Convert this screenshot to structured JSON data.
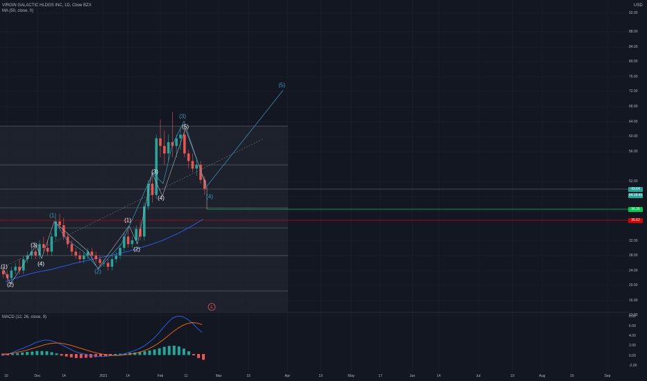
{
  "legend": {
    "title": "VIRGIN GALACTIC HLDGS INC, 1D, Cboe BZX",
    "ma": "MA (50, close, 0)",
    "macd": "MACD (12, 26, close, 9)"
  },
  "currency": "USD",
  "price_axis": [
    "92.00",
    "88.00",
    "84.00",
    "80.00",
    "76.00",
    "72.00",
    "68.00",
    "64.00",
    "60.00",
    "56.00",
    "52.00",
    "48.00",
    "40.00",
    "32.00",
    "28.00",
    "24.00",
    "20.00",
    "16.00",
    "12.00"
  ],
  "macd_axis": [
    "8.00",
    "6.00",
    "4.00",
    "2.00",
    "0.00",
    "-2.00"
  ],
  "date_axis": [
    "16",
    "Dec",
    "14",
    "2021",
    "14",
    "Feb",
    "11",
    "Mar",
    "15",
    "Apr",
    "19",
    "May",
    "17",
    "Jun",
    "14",
    "Jul",
    "19",
    "Aug",
    "16",
    "Sep"
  ],
  "price_tags": {
    "last_price": "43.64",
    "countdown": "04:18:40",
    "green_level": "36.35",
    "red_level": "35.62"
  },
  "wave_labels": [
    {
      "text": "(1)",
      "color": "white"
    },
    {
      "text": "(2)",
      "color": "white"
    },
    {
      "text": "(3)",
      "color": "white"
    },
    {
      "text": "(4)",
      "color": "white"
    },
    {
      "text": "(1)",
      "color": "blue"
    },
    {
      "text": "(2)",
      "color": "blue"
    },
    {
      "text": "(1)",
      "color": "white"
    },
    {
      "text": "(2)",
      "color": "white"
    },
    {
      "text": "(3)",
      "color": "white"
    },
    {
      "text": "(4)",
      "color": "white"
    },
    {
      "text": "(5)",
      "color": "white"
    },
    {
      "text": "(3)",
      "color": "blue"
    },
    {
      "text": "(4)",
      "color": "blue"
    },
    {
      "text": "(5)",
      "color": "blue"
    }
  ],
  "event_badge": "E",
  "chart_data": {
    "type": "candlestick",
    "ohlc": [
      [
        22,
        23,
        20,
        21
      ],
      [
        21,
        22,
        19,
        20
      ],
      [
        20,
        23,
        19,
        22
      ],
      [
        22,
        24,
        21,
        23
      ],
      [
        23,
        25,
        21,
        22
      ],
      [
        22,
        26,
        21,
        25
      ],
      [
        25,
        27,
        24,
        26
      ],
      [
        26,
        28,
        25,
        27
      ],
      [
        27,
        28,
        25,
        26
      ],
      [
        26,
        30,
        25,
        29
      ],
      [
        29,
        31,
        27,
        28
      ],
      [
        28,
        30,
        26,
        27
      ],
      [
        27,
        32,
        26,
        31
      ],
      [
        31,
        36,
        30,
        35
      ],
      [
        35,
        37,
        33,
        34
      ],
      [
        34,
        36,
        30,
        31
      ],
      [
        31,
        32,
        28,
        29
      ],
      [
        29,
        30,
        26,
        27
      ],
      [
        27,
        28,
        25,
        26
      ],
      [
        26,
        27,
        24,
        25
      ],
      [
        25,
        27,
        24,
        26
      ],
      [
        26,
        28,
        25,
        27
      ],
      [
        27,
        28,
        25,
        26
      ],
      [
        26,
        27,
        24,
        25
      ],
      [
        25,
        26,
        23,
        24
      ],
      [
        24,
        25,
        23,
        24
      ],
      [
        24,
        25,
        22,
        23
      ],
      [
        23,
        26,
        22,
        25
      ],
      [
        25,
        27,
        24,
        26
      ],
      [
        26,
        29,
        25,
        28
      ],
      [
        28,
        32,
        27,
        31
      ],
      [
        31,
        33,
        28,
        29
      ],
      [
        29,
        31,
        28,
        30
      ],
      [
        30,
        34,
        29,
        33
      ],
      [
        33,
        35,
        30,
        31
      ],
      [
        31,
        40,
        30,
        39
      ],
      [
        39,
        46,
        38,
        45
      ],
      [
        45,
        48,
        40,
        42
      ],
      [
        42,
        58,
        41,
        57
      ],
      [
        57,
        62,
        52,
        55
      ],
      [
        55,
        59,
        50,
        53
      ],
      [
        53,
        58,
        51,
        56
      ],
      [
        56,
        64,
        52,
        55
      ],
      [
        55,
        58,
        52,
        57
      ],
      [
        57,
        60,
        54,
        58
      ],
      [
        58,
        60,
        52,
        53
      ],
      [
        53,
        54,
        49,
        51
      ],
      [
        51,
        53,
        48,
        49
      ],
      [
        49,
        52,
        47,
        50
      ],
      [
        50,
        51,
        45,
        46
      ],
      [
        46,
        47,
        42,
        43.64
      ]
    ],
    "ma50": [
      19,
      19.5,
      20,
      20.4,
      20.8,
      21.2,
      21.5,
      21.8,
      22,
      22.3,
      22.6,
      23,
      23.3,
      23.7,
      24,
      24.3,
      24.6,
      24.9,
      25.2,
      25.5,
      25.8,
      26.1,
      26.4,
      26.7,
      27,
      27.4,
      27.8,
      28.2,
      28.6,
      29,
      29.5,
      30,
      30.6,
      31.2,
      31.8,
      32.5,
      33.2,
      34,
      34.8,
      35.6
    ],
    "price_scale": {
      "min": 12,
      "max": 92
    },
    "macd_line": [
      -0.2,
      -0.1,
      0.2,
      0.6,
      1.0,
      1.4,
      1.8,
      2.3,
      2.6,
      2.8,
      2.7,
      2.4,
      2.0,
      1.5,
      1.0,
      0.5,
      0.2,
      0.0,
      -0.3,
      -0.4,
      -0.5,
      -0.5,
      -0.4,
      -0.3,
      -0.2,
      0.0,
      0.3,
      0.6,
      1.0,
      1.5,
      2.2,
      3.0,
      4.0,
      5.2,
      6.3,
      7.2,
      7.6,
      7.5,
      7.0,
      6.2,
      5.2,
      4.3
    ],
    "signal_line": [
      0.0,
      0.0,
      0.1,
      0.3,
      0.5,
      0.7,
      1.0,
      1.3,
      1.6,
      1.9,
      2.1,
      2.2,
      2.2,
      2.0,
      1.8,
      1.5,
      1.2,
      0.9,
      0.6,
      0.3,
      0.1,
      -0.1,
      -0.2,
      -0.3,
      -0.3,
      -0.2,
      -0.1,
      0.1,
      0.3,
      0.6,
      1.0,
      1.5,
      2.1,
      2.8,
      3.6,
      4.4,
      5.1,
      5.7,
      6.1,
      6.3,
      6.2,
      5.9
    ],
    "macd_scale": {
      "min": -3,
      "max": 9
    }
  },
  "colors": {
    "background": "#131722",
    "up": "#26a69a",
    "down": "#ef5350",
    "ma": "#2962ff",
    "green_line": "#00c853",
    "red_line": "#d50000",
    "wave_blue": "#3a9fbf"
  }
}
